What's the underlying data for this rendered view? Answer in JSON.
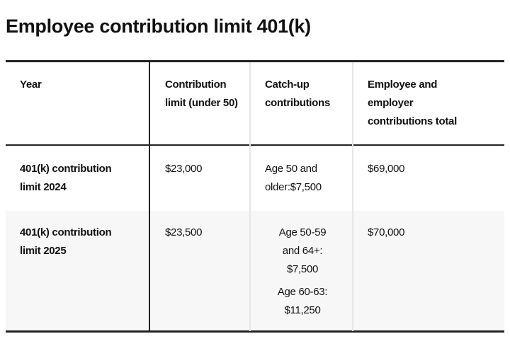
{
  "title": "Employee contribution limit 401(k)",
  "table": {
    "headers": [
      "Year",
      "Contribution limit (under 50)",
      "Catch-up contributions",
      "Employee and employer contributions total"
    ],
    "rows": [
      {
        "year": "401(k) contribution limit 2024",
        "limit": "$23,000",
        "catch_up": [
          "Age 50 and older:$7,500"
        ],
        "total": "$69,000"
      },
      {
        "year": "401(k) contribution limit 2025",
        "limit": "$23,500",
        "catch_up": [
          "Age 50-59 and 64+: $7,500",
          "Age 60-63: $11,250"
        ],
        "total": "$70,000"
      }
    ]
  }
}
